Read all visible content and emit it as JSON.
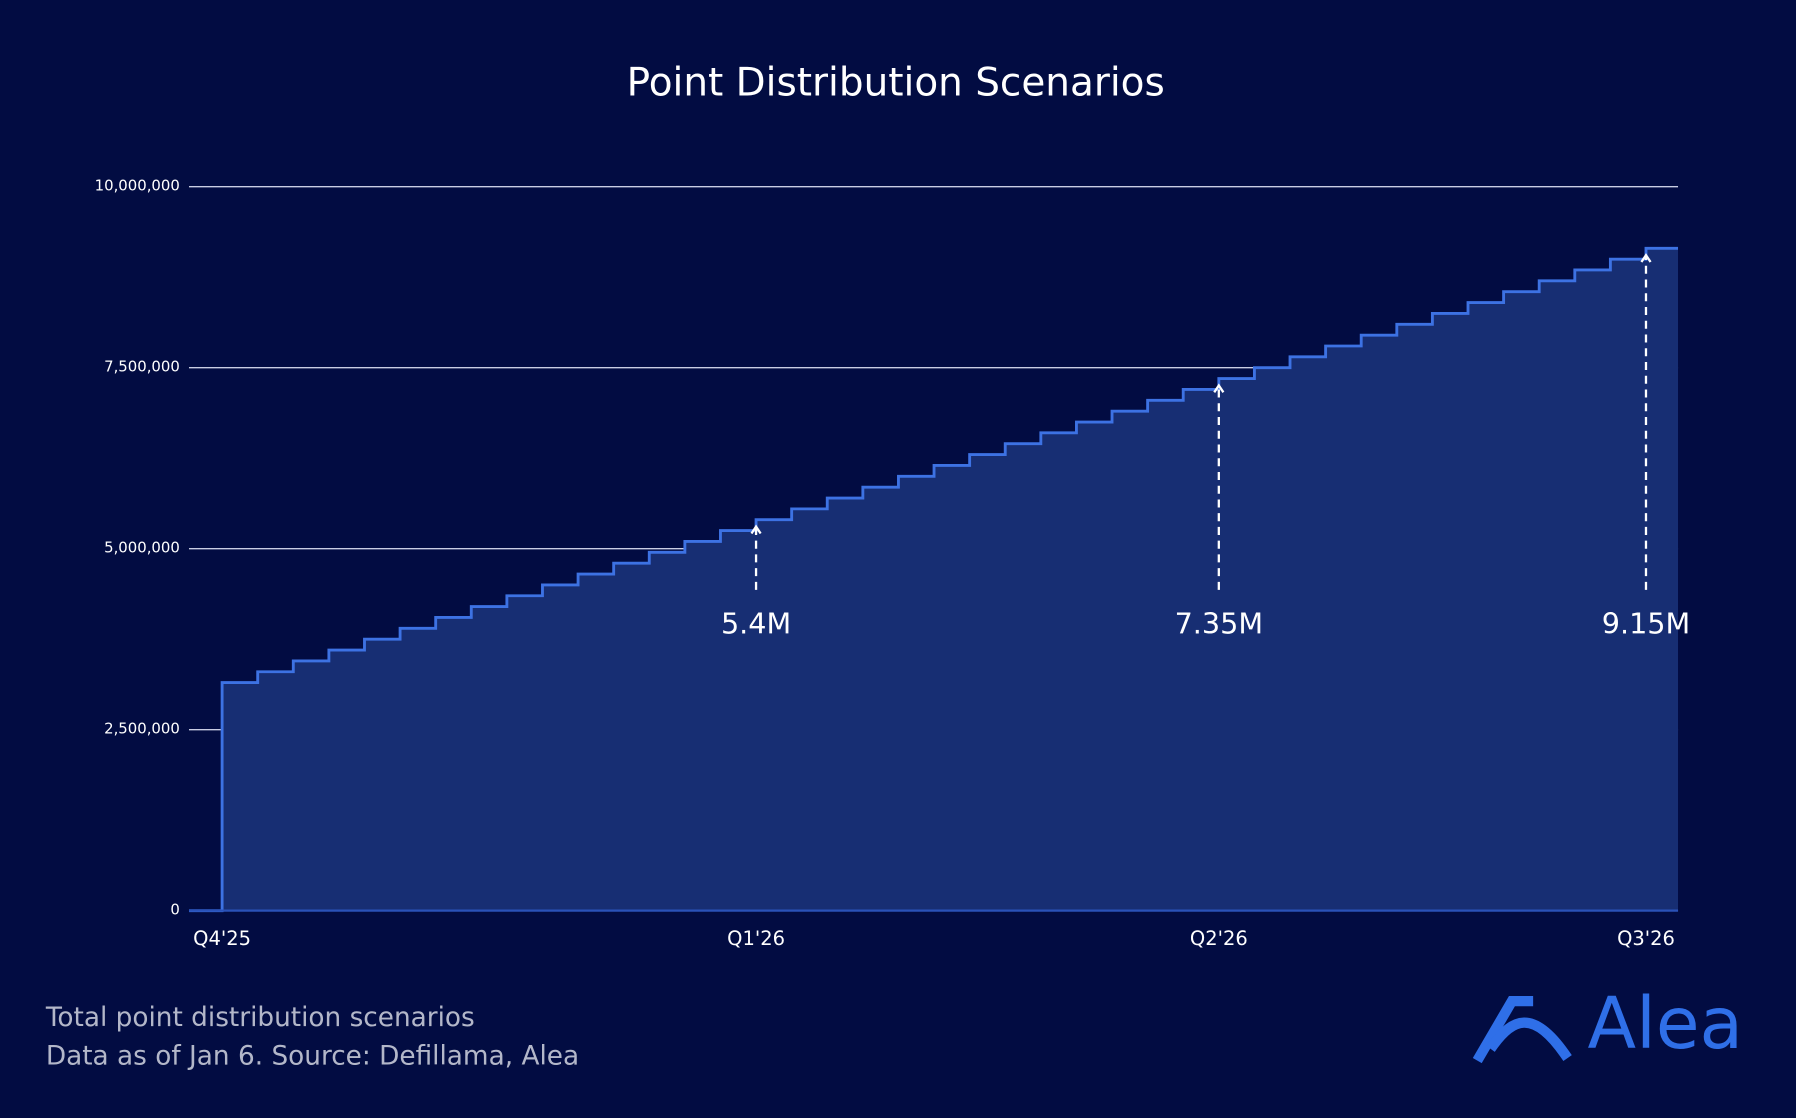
{
  "chart_data": {
    "type": "step-area",
    "title": "Point Distribution Scenarios",
    "x": [
      0,
      1,
      2,
      3,
      4,
      5,
      6,
      7,
      8,
      9,
      10,
      11,
      12,
      13,
      14,
      15,
      16,
      17,
      18,
      19,
      20,
      21,
      22,
      23,
      24,
      25,
      26,
      27,
      28,
      29,
      30,
      31,
      32,
      33,
      34,
      35,
      36,
      37,
      38,
      39,
      40
    ],
    "values": [
      3150000,
      3300000,
      3450000,
      3600000,
      3750000,
      3900000,
      4050000,
      4200000,
      4350000,
      4500000,
      4650000,
      4800000,
      4950000,
      5100000,
      5250000,
      5400000,
      5550000,
      5700000,
      5850000,
      6000000,
      6150000,
      6300000,
      6450000,
      6600000,
      6750000,
      6900000,
      7050000,
      7200000,
      7350000,
      7500000,
      7650000,
      7800000,
      7950000,
      8100000,
      8250000,
      8400000,
      8550000,
      8700000,
      8850000,
      9000000,
      9150000
    ],
    "color": "#3d72e3",
    "fill": "#172e73",
    "xlim": [
      -0.93,
      40.9
    ],
    "xticks": [
      {
        "value": 0,
        "label": "Q4'25"
      },
      {
        "value": 15,
        "label": "Q1'26"
      },
      {
        "value": 28,
        "label": "Q2'26"
      },
      {
        "value": 40,
        "label": "Q3'26"
      }
    ],
    "ylim": [
      0,
      10000000
    ],
    "yticks": [
      0,
      {
        "value": 2500000,
        "label": "2,500,000"
      },
      {
        "value": 5000000,
        "label": "5,000,000"
      },
      {
        "value": 7500000,
        "label": "7,500,000"
      },
      {
        "value": 10000000,
        "label": "10,000,000"
      }
    ],
    "grid": true,
    "annotations": [
      {
        "x": 15,
        "value": 5400000,
        "label": "5.4M"
      },
      {
        "x": 28,
        "value": 7350000,
        "label": "7.35M"
      },
      {
        "x": 40,
        "value": 9150000,
        "label": "9.15M"
      }
    ]
  },
  "footer": {
    "lines": [
      "Total point distribution scenarios",
      "Data as of Jan 6. Source: Defillama, Alea"
    ],
    "logo": "Alea"
  }
}
